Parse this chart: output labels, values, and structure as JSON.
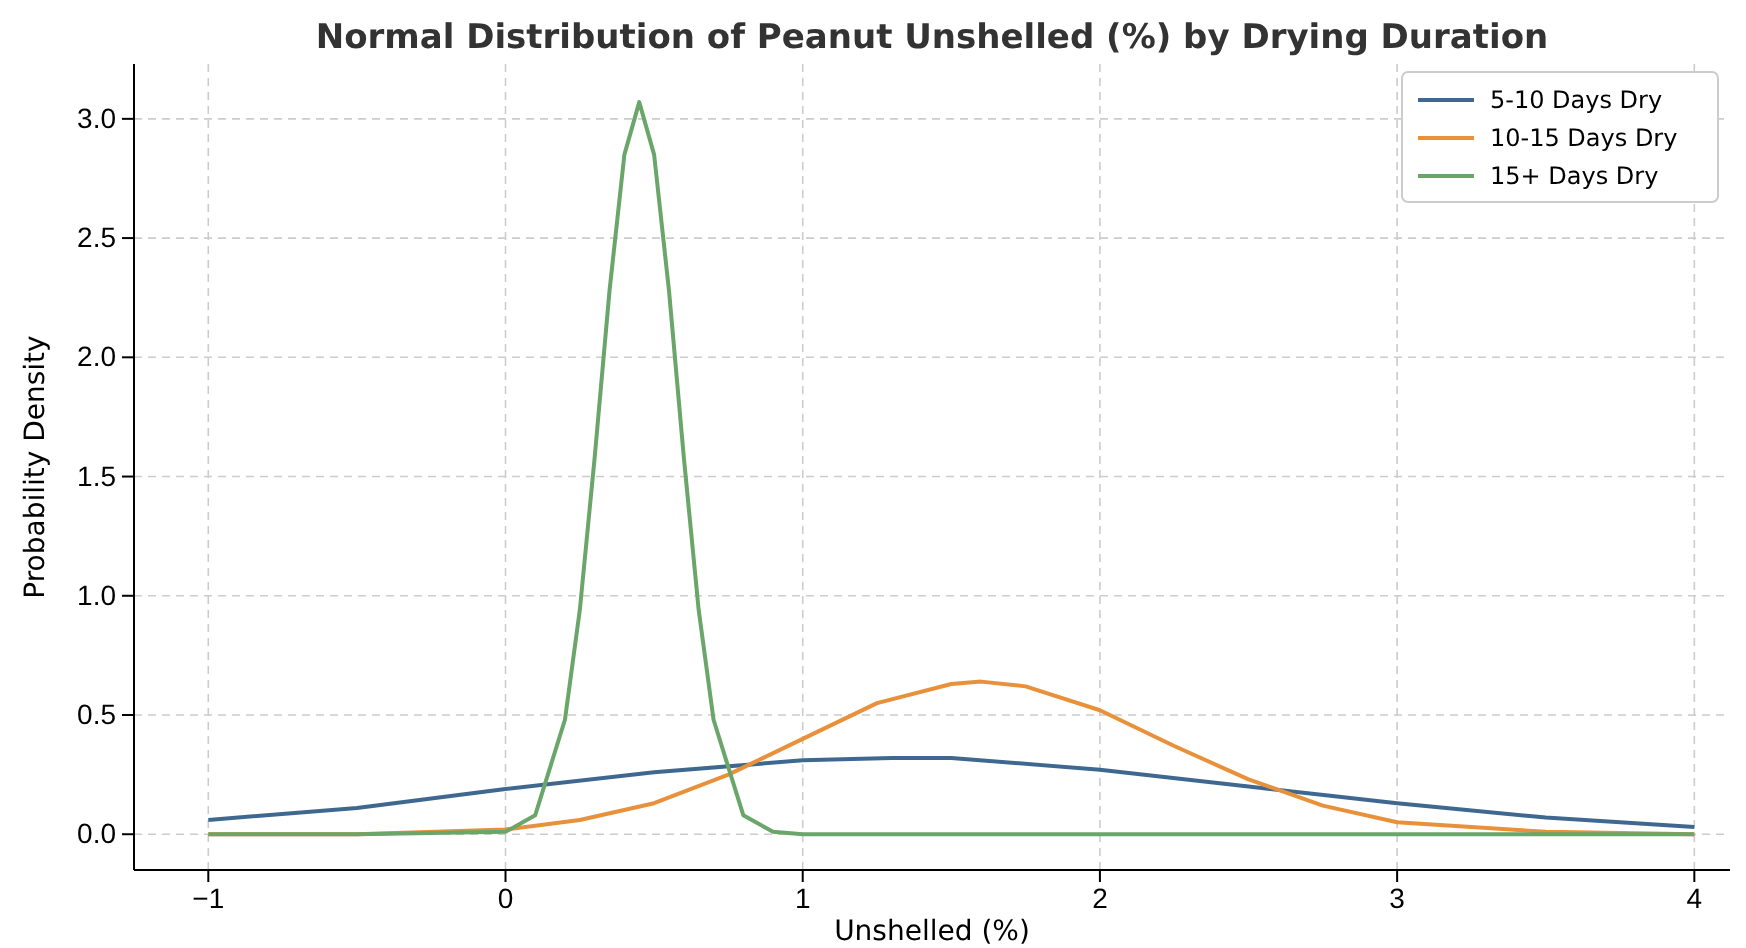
{
  "chart_data": {
    "type": "line",
    "title": "Normal Distribution of Peanut Unshelled (%) by Drying Duration",
    "xlabel": "Unshelled (%)",
    "ylabel": "Probability Density",
    "xlim": [
      -1.25,
      4.12
    ],
    "xticks": [
      {
        "value": -1,
        "label": "−1"
      },
      0,
      1,
      2,
      3,
      4
    ],
    "ylim": [
      -0.15,
      3.23
    ],
    "yticks": [
      {
        "value": 0,
        "label": "0.0"
      },
      0.5,
      {
        "value": 1,
        "label": "1.0"
      },
      1.5,
      {
        "value": 2,
        "label": "2.0"
      },
      2.5,
      {
        "value": 3,
        "label": "3.0"
      }
    ],
    "grid": true,
    "legend": "top right",
    "line_style": "solid",
    "series": [
      {
        "name": "5-10 Days Dry",
        "color": "#3f6891",
        "x": [
          -1,
          -0.5,
          0,
          0.5,
          1,
          1.3,
          1.5,
          2,
          2.5,
          3,
          3.5,
          4
        ],
        "values": [
          0.06,
          0.11,
          0.19,
          0.26,
          0.31,
          0.32,
          0.32,
          0.27,
          0.2,
          0.13,
          0.07,
          0.03
        ]
      },
      {
        "name": "10-15 Days Dry",
        "color": "#e8913a",
        "x": [
          -1,
          -0.5,
          0,
          0.25,
          0.5,
          0.75,
          1,
          1.25,
          1.5,
          1.6,
          1.75,
          2,
          2.25,
          2.5,
          2.75,
          3,
          3.5,
          4
        ],
        "values": [
          0,
          0,
          0.02,
          0.06,
          0.13,
          0.25,
          0.4,
          0.55,
          0.63,
          0.64,
          0.62,
          0.52,
          0.37,
          0.23,
          0.12,
          0.05,
          0.01,
          0
        ]
      },
      {
        "name": "15+ Days Dry",
        "color": "#6aa56a",
        "x": [
          -1,
          -0.5,
          0,
          0.1,
          0.2,
          0.25,
          0.3,
          0.35,
          0.4,
          0.45,
          0.5,
          0.55,
          0.6,
          0.65,
          0.7,
          0.8,
          0.9,
          1,
          2,
          3,
          4
        ],
        "values": [
          0,
          0,
          0.01,
          0.08,
          0.48,
          0.94,
          1.58,
          2.28,
          2.85,
          3.07,
          2.85,
          2.28,
          1.58,
          0.94,
          0.48,
          0.08,
          0.01,
          0,
          0,
          0,
          0
        ]
      }
    ]
  }
}
